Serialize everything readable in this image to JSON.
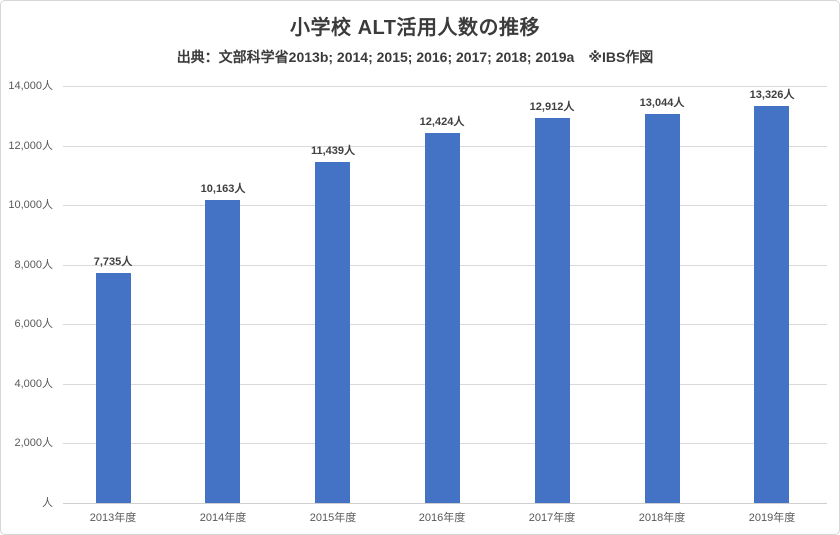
{
  "chart_data": {
    "type": "bar",
    "title": "小学校 ALT活用人数の推移",
    "subtitle": "出典：文部科学省2013b; 2014; 2015; 2016; 2017; 2018; 2019a　※IBS作図",
    "categories": [
      "2013年度",
      "2014年度",
      "2015年度",
      "2016年度",
      "2017年度",
      "2018年度",
      "2019年度"
    ],
    "values": [
      7735,
      10163,
      11439,
      12424,
      12912,
      13044,
      13326
    ],
    "value_labels": [
      "7,735人",
      "10,163人",
      "11,439人",
      "12,424人",
      "12,912人",
      "13,044人",
      "13,326人"
    ],
    "y_tick_values": [
      0,
      2000,
      4000,
      6000,
      8000,
      10000,
      12000,
      14000
    ],
    "y_tick_labels": [
      "人",
      "2,000人",
      "4,000人",
      "6,000人",
      "8,000人",
      "10,000人",
      "12,000人",
      "14,000人"
    ],
    "ylim": [
      0,
      14000
    ],
    "xlabel": "",
    "ylabel": "",
    "grid": "horizontal",
    "legend": "none",
    "bar_color": "#4472C4",
    "grid_color": "#D9D9D9",
    "tick_color": "#595959",
    "data_label_color": "#404040",
    "title_color": "#3B3B3B"
  }
}
